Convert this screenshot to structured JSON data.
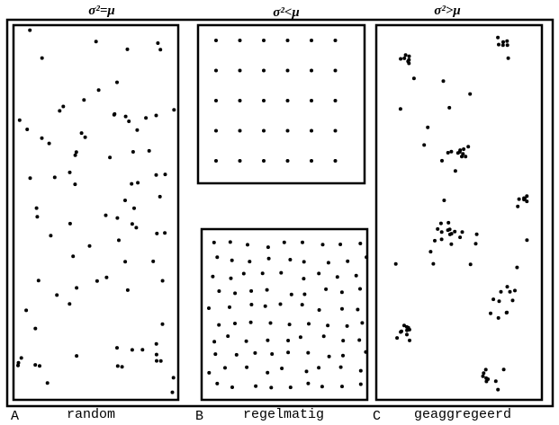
{
  "panels": [
    {
      "header": "σ²=μ",
      "letter": "A",
      "label": "random"
    },
    {
      "header": "σ²<μ",
      "letter": "B",
      "label": "regelmatig"
    },
    {
      "header": "σ²>μ",
      "letter": "C",
      "label": "geaggregeerd"
    }
  ]
}
